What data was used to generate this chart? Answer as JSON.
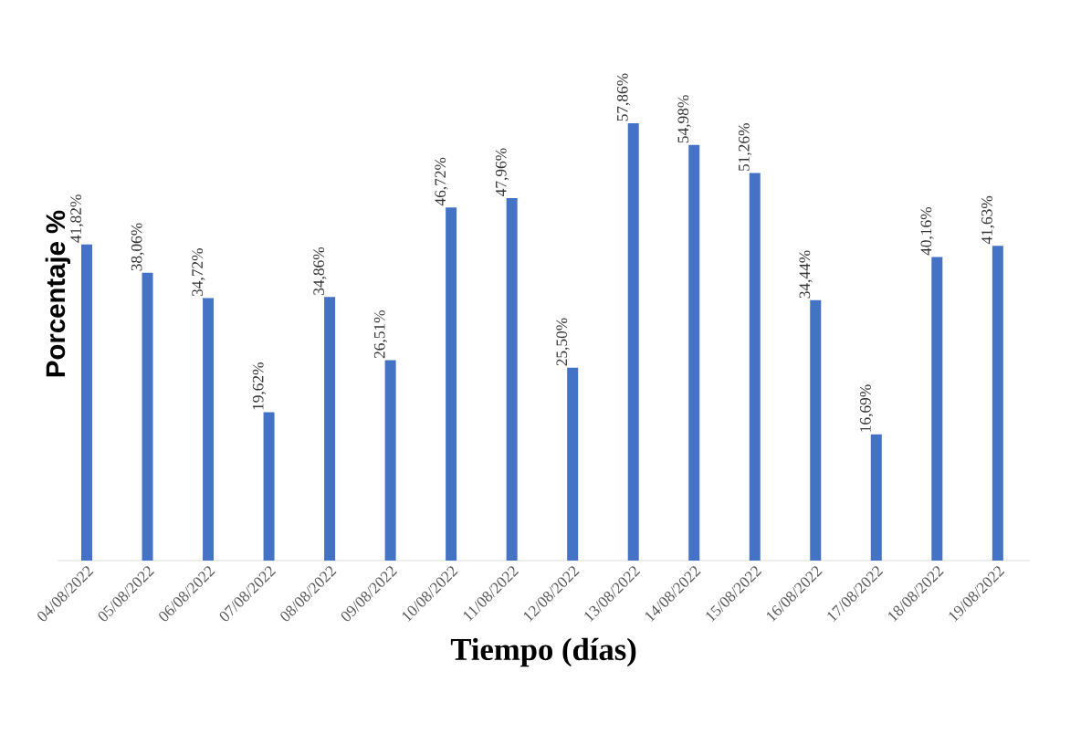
{
  "chart_data": {
    "type": "bar",
    "xlabel": "Tiempo (días)",
    "ylabel": "Porcentaje %",
    "categories": [
      "04/08/2022",
      "05/08/2022",
      "06/08/2022",
      "07/08/2022",
      "08/08/2022",
      "09/08/2022",
      "10/08/2022",
      "11/08/2022",
      "12/08/2022",
      "13/08/2022",
      "14/08/2022",
      "15/08/2022",
      "16/08/2022",
      "17/08/2022",
      "18/08/2022",
      "19/08/2022"
    ],
    "values": [
      41.82,
      38.06,
      34.72,
      19.62,
      34.86,
      26.51,
      46.72,
      47.96,
      25.5,
      57.86,
      54.98,
      51.26,
      34.44,
      16.69,
      40.16,
      41.63
    ],
    "value_labels": [
      "41,82%",
      "38,06%",
      "34,72%",
      "19,62%",
      "34,86%",
      "26,51%",
      "46,72%",
      "47,96%",
      "25,50%",
      "57,86%",
      "54,98%",
      "51,26%",
      "34,44%",
      "16,69%",
      "40,16%",
      "41,63%"
    ],
    "color": "#4472c4"
  }
}
